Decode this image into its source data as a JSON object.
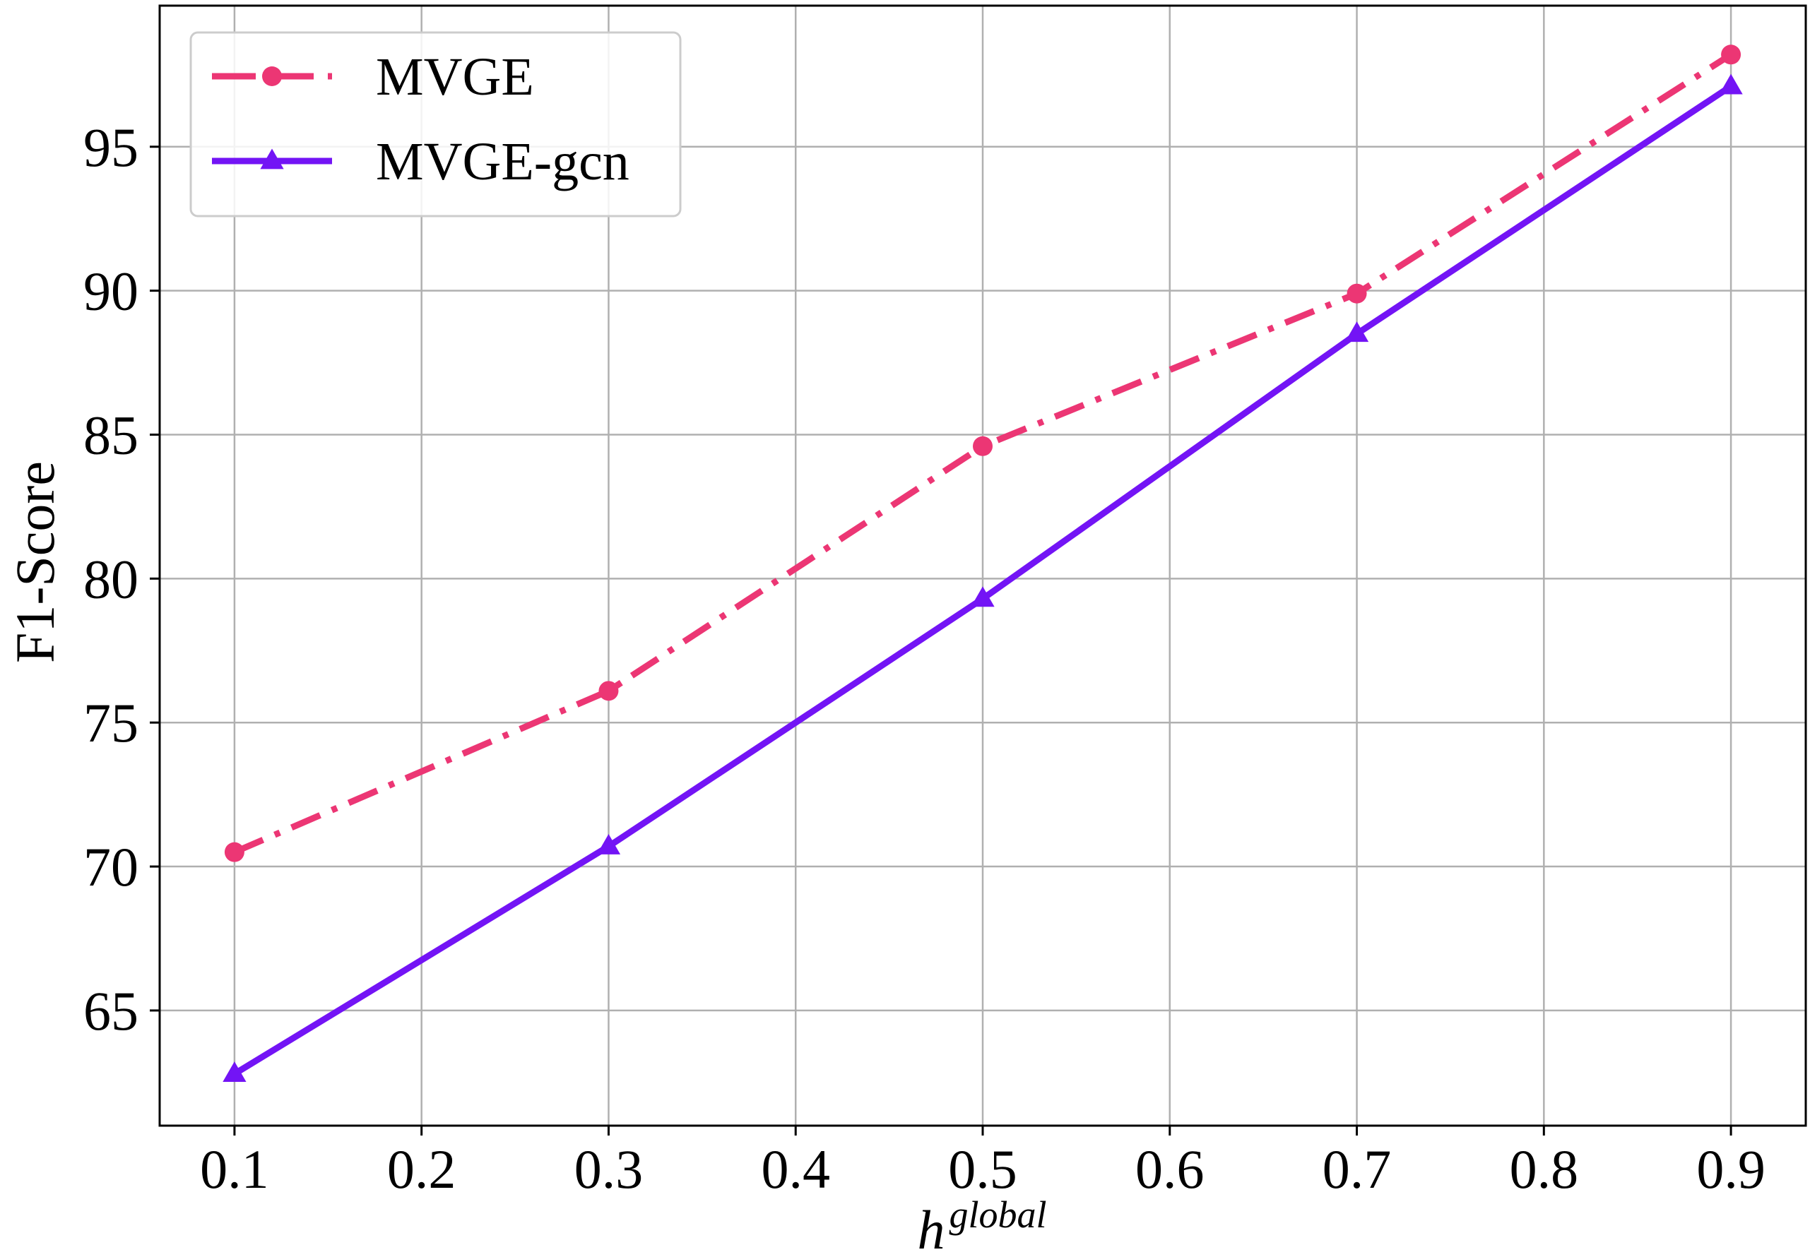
{
  "chart_data": {
    "type": "line",
    "xlabel": "h",
    "xlabel_superscript": "global",
    "ylabel": "F1-Score",
    "x": [
      0.1,
      0.3,
      0.5,
      0.7,
      0.9
    ],
    "xlim": [
      0.06,
      0.94
    ],
    "ylim": [
      61.0,
      99.9
    ],
    "x_ticks": [
      "0.1",
      "0.2",
      "0.3",
      "0.4",
      "0.5",
      "0.6",
      "0.7",
      "0.8",
      "0.9"
    ],
    "y_ticks": [
      "65",
      "70",
      "75",
      "80",
      "85",
      "90",
      "95"
    ],
    "grid": true,
    "legend_position": "top-left",
    "series": [
      {
        "name": "MVGE",
        "values": [
          70.5,
          76.1,
          84.6,
          89.9,
          98.2
        ],
        "color": "#ec3674",
        "line_style": "dash-dot",
        "marker": "circle"
      },
      {
        "name": "MVGE-gcn",
        "values": [
          62.8,
          70.7,
          79.3,
          88.5,
          97.1
        ],
        "color": "#7314f5",
        "line_style": "solid",
        "marker": "triangle"
      }
    ]
  }
}
